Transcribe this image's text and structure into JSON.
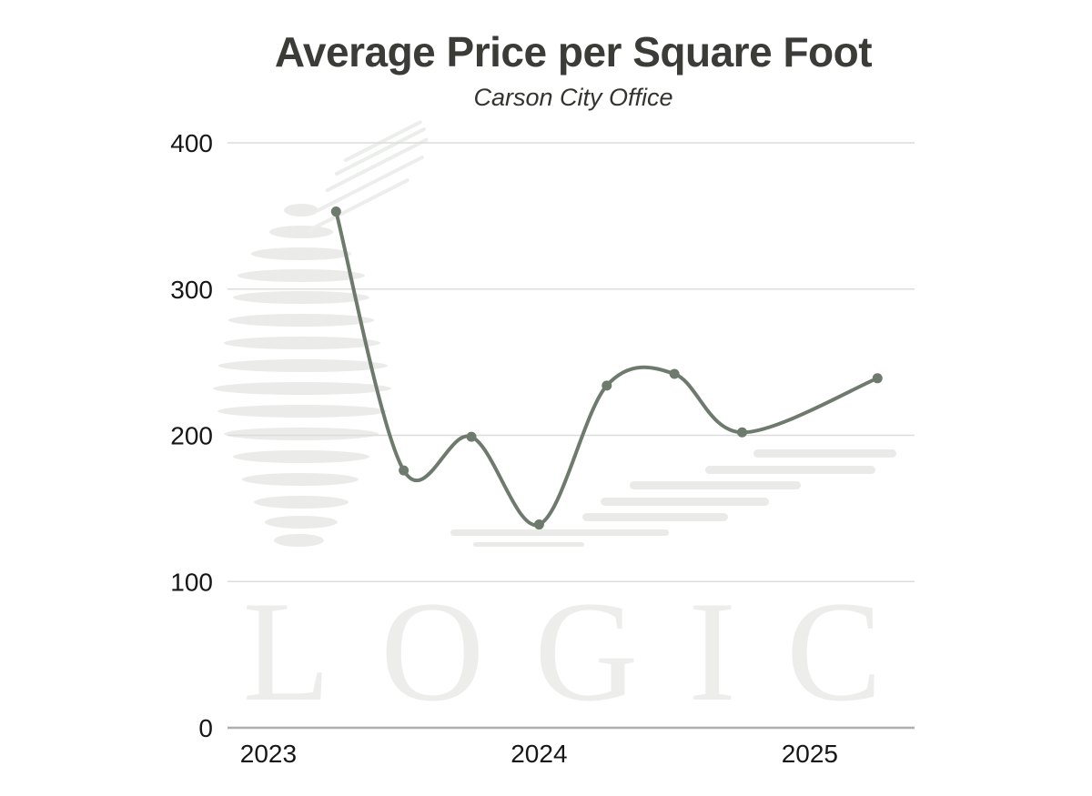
{
  "title": "Average Price per Square Foot",
  "subtitle": "Carson City Office",
  "watermark": {
    "text": "LOGIC"
  },
  "chart_data": {
    "type": "line",
    "title": "Average Price per Square Foot",
    "subtitle": "Carson City Office",
    "x": [
      2023.25,
      2023.5,
      2023.75,
      2024.0,
      2024.25,
      2024.5,
      2024.75,
      2025.25
    ],
    "values": [
      353,
      176,
      199,
      139,
      234,
      242,
      202,
      239
    ],
    "x_ticks": [
      2023,
      2024,
      2025
    ],
    "x_tick_labels": [
      "2023",
      "2024",
      "2025"
    ],
    "y_ticks": [
      0,
      100,
      200,
      300,
      400
    ],
    "y_tick_labels": [
      "0",
      "100",
      "200",
      "300",
      "400"
    ],
    "xlim": [
      2022.849,
      2025.387
    ],
    "ylim": [
      0,
      400
    ],
    "grid": "horizontal",
    "legend": "none",
    "line_color": "#6e7a6d",
    "point_color": "#6e7a6d",
    "grid_color": "#dcdcda",
    "axis_color": "#aeaeac"
  }
}
